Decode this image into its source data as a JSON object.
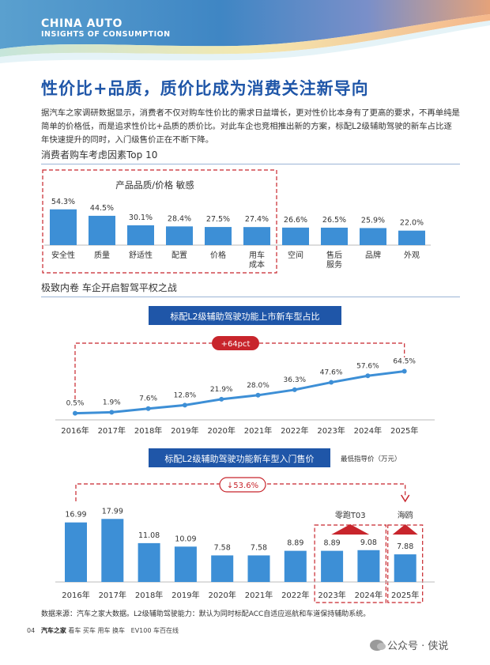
{
  "header": {
    "line1": "CHINA AUTO",
    "line2": "INSIGHTS OF CONSUMPTION",
    "colors": {
      "blue": "#1f56a8",
      "red": "#c8252c"
    }
  },
  "page_title": "性价比+品质，质价比成为消费关注新导向",
  "intro": "据汽车之家调研数据显示，消费者不仅对购车性价比的需求日益增长，更对性价比本身有了更高的要求，不再单纯是简单的价格低，而是追求性价比+品质的质价比。对此车企也竞相推出新的方案，标配L2级辅助驾驶的新车占比逐年快速提升的同时，入门级售价正在不断下降。",
  "section1_title": "消费者购车考虑因素Top 10",
  "section2_title": "极致内卷 车企开启智驾平权之战",
  "footer": {
    "source": "数据来源：汽车之家大数据。L2级辅助驾驶能力：默认为同时标配ACC自适应巡航和车道保持辅助系统。",
    "page_no": "04",
    "brands": [
      "汽车之家",
      "看车",
      "买车",
      "用车",
      "换车",
      "EV100 车百在线"
    ]
  },
  "watermark": "公众号 · 侠说",
  "chart_data": [
    {
      "type": "bar",
      "title": "",
      "categories": [
        "安全性",
        "质量",
        "舒适性",
        "配置",
        "价格",
        "用车\n成本",
        "空间",
        "售后\n服务",
        "品牌",
        "外观"
      ],
      "values": [
        54.3,
        44.5,
        30.1,
        28.4,
        27.5,
        27.4,
        26.6,
        26.5,
        25.9,
        22.0
      ],
      "value_labels": [
        "54.3%",
        "44.5%",
        "30.1%",
        "28.4%",
        "27.5%",
        "27.4%",
        "26.6%",
        "26.5%",
        "25.9%",
        "22.0%"
      ],
      "highlight_label": "产品品质/价格 敏感",
      "highlight_count": 6,
      "bar_color": "#3d8fd6",
      "ylim": [
        0,
        60
      ]
    },
    {
      "type": "line",
      "title": "标配L2级辅助驾驶功能上市新车型占比",
      "x": [
        "2016年",
        "2017年",
        "2018年",
        "2019年",
        "2020年",
        "2021年",
        "2022年",
        "2023年",
        "2024年",
        "2025年"
      ],
      "values": [
        0.5,
        1.9,
        7.6,
        12.8,
        21.9,
        28.0,
        36.3,
        47.6,
        57.6,
        64.5
      ],
      "value_labels": [
        "0.5%",
        "1.9%",
        "7.6%",
        "12.8%",
        "21.9%",
        "28.0%",
        "36.3%",
        "47.6%",
        "57.6%",
        "64.5%"
      ],
      "annotation": "+64pct",
      "line_color": "#3d8fd6",
      "ylim": [
        0,
        70
      ]
    },
    {
      "type": "bar",
      "title": "标配L2级辅助驾驶功能新车型入门售价",
      "unit_label": "最低指导价（万元）",
      "categories": [
        "2016年",
        "2017年",
        "2018年",
        "2019年",
        "2020年",
        "2021年",
        "2022年",
        "2023年",
        "2024年",
        "2025年"
      ],
      "values": [
        16.99,
        17.99,
        11.08,
        10.09,
        7.58,
        7.58,
        8.89,
        8.89,
        9.08,
        7.88
      ],
      "value_labels": [
        "16.99",
        "17.99",
        "11.08",
        "10.09",
        "7.58",
        "7.58",
        "8.89",
        "8.89",
        "9.08",
        "7.88"
      ],
      "annotation": "↓53.6%",
      "callouts": [
        "零跑T03",
        "海鸥"
      ],
      "bar_color": "#3d8fd6",
      "ylim": [
        0,
        20
      ]
    }
  ]
}
